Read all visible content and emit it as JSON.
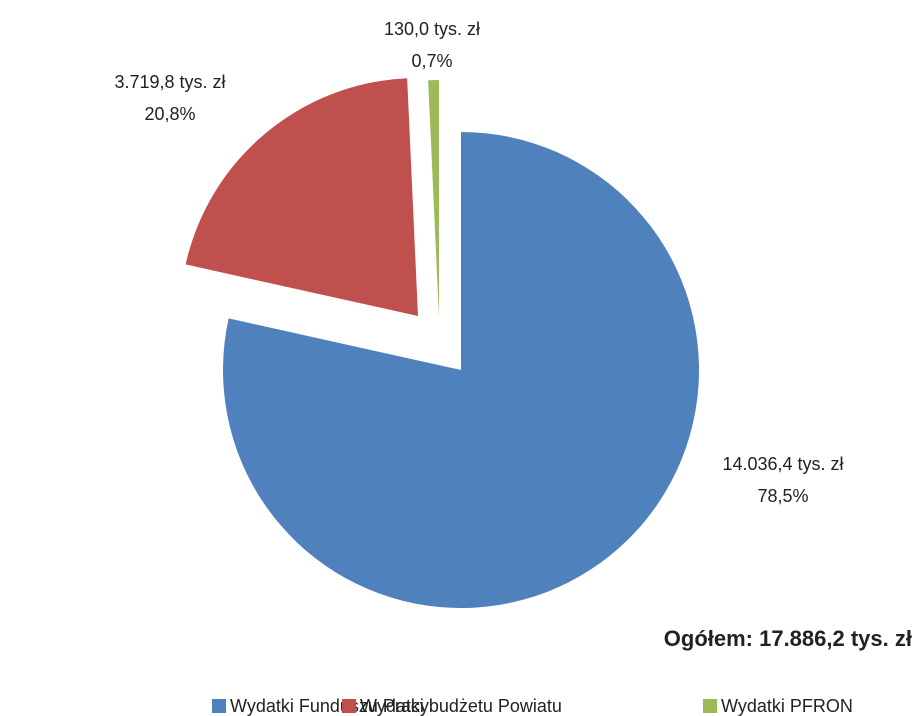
{
  "chart_data": {
    "type": "pie",
    "categories": [
      "Wydatki Funduszu Pracy",
      "Wydatki budżetu Powiatu",
      "Wydatki PFRON"
    ],
    "values": [
      14036.4,
      3719.8,
      130.0
    ],
    "value_labels": [
      "14.036,4 tys. zł",
      "3.719,8 tys. zł",
      "130,0 tys. zł"
    ],
    "percent_labels": [
      "78,5%",
      "20,8%",
      "0,7%"
    ],
    "colors": [
      "#4f81bd",
      "#c0504d",
      "#9bbb59"
    ],
    "annotation": "Ogółem: 17.886,2 tys. zł",
    "legend": "bottom"
  }
}
